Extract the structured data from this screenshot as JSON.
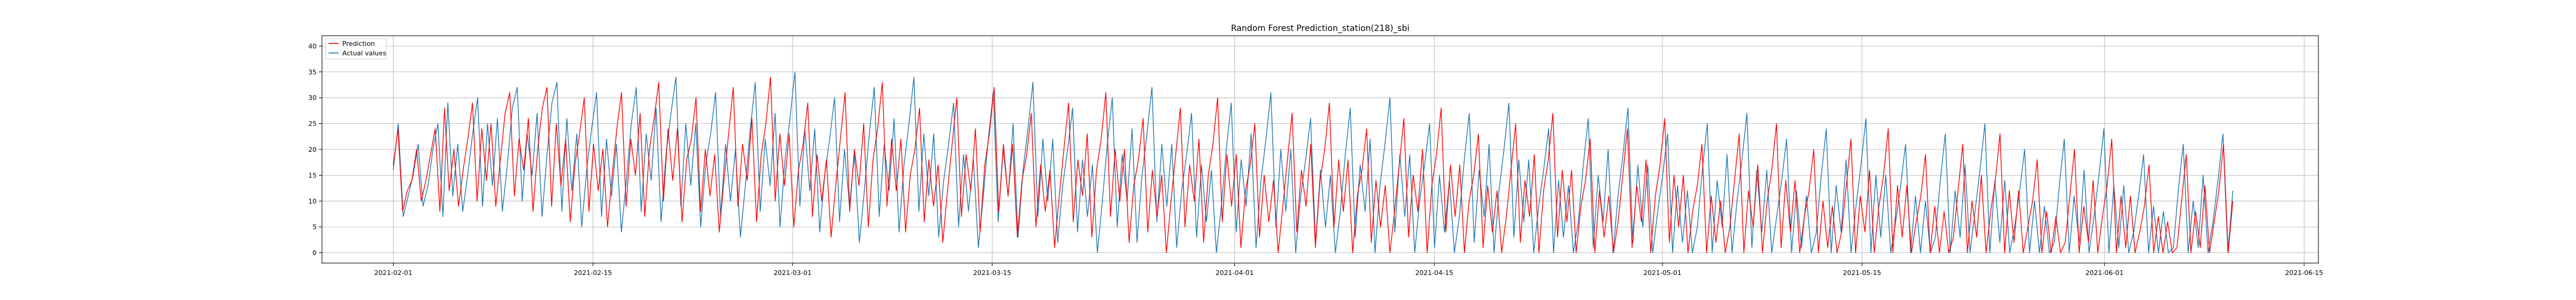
{
  "chart_data": {
    "type": "line",
    "title": "Random Forest Prediction_station(218)_sbi",
    "xlabel": "",
    "ylabel": "",
    "x_axis_type": "date",
    "x_start": "2021-02-01",
    "x_end": "2021-06-10",
    "xlim": [
      "2021-01-27",
      "2021-06-16"
    ],
    "ylim": [
      -2,
      42
    ],
    "x_ticks": [
      "2021-02-01",
      "2021-02-15",
      "2021-03-01",
      "2021-03-15",
      "2021-04-01",
      "2021-04-15",
      "2021-05-01",
      "2021-05-15",
      "2021-06-01",
      "2021-06-15"
    ],
    "y_ticks": [
      0,
      5,
      10,
      15,
      20,
      25,
      30,
      35,
      40
    ],
    "grid": true,
    "legend_position": "top-left",
    "series": [
      {
        "name": "Prediction",
        "color": "#ff0000",
        "samples_per_day": 4,
        "values": [
          17,
          24,
          8,
          12,
          14,
          20,
          10,
          14,
          19,
          24,
          8,
          28,
          12,
          20,
          9,
          16,
          22,
          29,
          10,
          24,
          14,
          25,
          9,
          18,
          27,
          31,
          11,
          22,
          16,
          26,
          8,
          20,
          28,
          32,
          9,
          25,
          13,
          22,
          6,
          17,
          23,
          30,
          8,
          21,
          12,
          20,
          5,
          15,
          24,
          31,
          9,
          22,
          15,
          27,
          7,
          20,
          26,
          33,
          10,
          24,
          14,
          24,
          6,
          18,
          22,
          30,
          8,
          20,
          11,
          19,
          4,
          14,
          23,
          32,
          9,
          21,
          14,
          26,
          6,
          19,
          25,
          34,
          10,
          23,
          13,
          23,
          5,
          16,
          21,
          29,
          7,
          19,
          10,
          18,
          3,
          13,
          22,
          31,
          8,
          20,
          13,
          25,
          5,
          18,
          24,
          33,
          9,
          22,
          12,
          22,
          4,
          15,
          20,
          28,
          6,
          18,
          9,
          17,
          2,
          12,
          21,
          30,
          7,
          19,
          12,
          24,
          4,
          17,
          23,
          32,
          8,
          21,
          11,
          21,
          3,
          14,
          19,
          27,
          5,
          17,
          8,
          16,
          1,
          11,
          20,
          29,
          6,
          18,
          11,
          23,
          3,
          16,
          22,
          31,
          7,
          20,
          10,
          20,
          2,
          13,
          18,
          26,
          4,
          16,
          7,
          15,
          0,
          10,
          19,
          28,
          5,
          17,
          10,
          22,
          2,
          15,
          21,
          30,
          6,
          19,
          9,
          19,
          1,
          12,
          17,
          25,
          3,
          15,
          6,
          14,
          0,
          9,
          18,
          27,
          4,
          16,
          9,
          21,
          1,
          14,
          20,
          29,
          5,
          18,
          8,
          18,
          0,
          11,
          16,
          24,
          2,
          14,
          5,
          13,
          0,
          8,
          17,
          26,
          3,
          15,
          8,
          20,
          0,
          13,
          19,
          28,
          4,
          17,
          7,
          17,
          0,
          10,
          15,
          23,
          1,
          13,
          4,
          12,
          0,
          7,
          16,
          25,
          2,
          14,
          7,
          19,
          0,
          12,
          18,
          27,
          3,
          16,
          6,
          16,
          0,
          9,
          14,
          22,
          0,
          12,
          3,
          11,
          0,
          6,
          15,
          24,
          1,
          13,
          6,
          18,
          0,
          11,
          17,
          26,
          2,
          15,
          5,
          15,
          0,
          8,
          13,
          21,
          0,
          11,
          2,
          10,
          0,
          5,
          14,
          23,
          0,
          12,
          5,
          17,
          0,
          10,
          16,
          25,
          1,
          14,
          4,
          14,
          0,
          7,
          12,
          20,
          0,
          10,
          1,
          9,
          0,
          4,
          13,
          22,
          0,
          11,
          4,
          16,
          0,
          9,
          15,
          24,
          0,
          13,
          3,
          13,
          0,
          6,
          11,
          19,
          0,
          9,
          0,
          8,
          0,
          3,
          12,
          21,
          0,
          10,
          3,
          15,
          0,
          8,
          14,
          23,
          0,
          12,
          2,
          12,
          0,
          5,
          10,
          18,
          0,
          8,
          0,
          7,
          0,
          2,
          11,
          20,
          0,
          9,
          2,
          14,
          0,
          7,
          13,
          22,
          0,
          11,
          1,
          11,
          0,
          4,
          9,
          17,
          0,
          7,
          0,
          6,
          0,
          1,
          10,
          19,
          0,
          8,
          1,
          13,
          0,
          6,
          12,
          21,
          0,
          10
        ]
      },
      {
        "name": "Actual values",
        "color": "#1f77b4",
        "samples_per_day": 4,
        "values": [
          16,
          25,
          7,
          11,
          15,
          21,
          9,
          13,
          20,
          25,
          7,
          29,
          11,
          21,
          8,
          15,
          23,
          30,
          9,
          25,
          13,
          26,
          8,
          17,
          28,
          32,
          10,
          23,
          15,
          27,
          7,
          19,
          29,
          33,
          8,
          26,
          12,
          23,
          5,
          16,
          24,
          31,
          7,
          22,
          11,
          21,
          4,
          14,
          25,
          32,
          8,
          23,
          14,
          28,
          6,
          19,
          27,
          34,
          9,
          25,
          13,
          25,
          5,
          17,
          23,
          31,
          7,
          21,
          10,
          20,
          3,
          13,
          24,
          33,
          8,
          22,
          13,
          27,
          5,
          18,
          26,
          35,
          9,
          24,
          12,
          24,
          4,
          15,
          22,
          30,
          6,
          20,
          9,
          19,
          2,
          12,
          23,
          32,
          7,
          21,
          12,
          26,
          4,
          17,
          25,
          34,
          8,
          23,
          11,
          23,
          3,
          14,
          21,
          29,
          5,
          19,
          8,
          18,
          1,
          11,
          22,
          31,
          6,
          20,
          11,
          25,
          3,
          16,
          24,
          33,
          7,
          22,
          10,
          22,
          2,
          13,
          20,
          28,
          4,
          18,
          7,
          17,
          0,
          10,
          21,
          30,
          5,
          19,
          10,
          24,
          2,
          15,
          23,
          32,
          6,
          21,
          9,
          21,
          1,
          12,
          19,
          27,
          3,
          17,
          6,
          16,
          0,
          9,
          20,
          29,
          4,
          18,
          9,
          23,
          1,
          14,
          22,
          31,
          5,
          20,
          8,
          20,
          0,
          11,
          18,
          26,
          2,
          16,
          5,
          15,
          0,
          8,
          19,
          28,
          3,
          17,
          8,
          22,
          0,
          13,
          21,
          30,
          4,
          19,
          7,
          19,
          0,
          10,
          17,
          25,
          1,
          15,
          4,
          14,
          0,
          7,
          18,
          27,
          2,
          16,
          7,
          21,
          0,
          12,
          20,
          29,
          3,
          18,
          6,
          18,
          0,
          9,
          16,
          24,
          0,
          14,
          3,
          13,
          0,
          6,
          17,
          26,
          1,
          15,
          6,
          20,
          0,
          11,
          19,
          28,
          2,
          17,
          5,
          17,
          0,
          8,
          15,
          23,
          0,
          13,
          2,
          12,
          0,
          5,
          16,
          25,
          0,
          14,
          5,
          19,
          0,
          10,
          18,
          27,
          1,
          16,
          4,
          16,
          0,
          7,
          14,
          22,
          0,
          12,
          1,
          11,
          0,
          4,
          15,
          24,
          0,
          13,
          4,
          18,
          0,
          9,
          17,
          26,
          0,
          15,
          3,
          15,
          0,
          6,
          13,
          21,
          0,
          11,
          0,
          10,
          0,
          3,
          14,
          23,
          0,
          12,
          3,
          17,
          0,
          8,
          16,
          25,
          0,
          14,
          2,
          14,
          0,
          5,
          12,
          20,
          0,
          10,
          0,
          9,
          0,
          2,
          13,
          22,
          0,
          11,
          2,
          16,
          0,
          7,
          15,
          24,
          0,
          13,
          1,
          13,
          0,
          4,
          11,
          19,
          0,
          9,
          0,
          8,
          0,
          1,
          12,
          21,
          0,
          10,
          1,
          15,
          0,
          6,
          14,
          23,
          0,
          12
        ]
      }
    ]
  },
  "style": {
    "prediction_color": "#ff0000",
    "actual_color": "#1f77b4",
    "grid_color": "#b0b0b0",
    "axes_color": "#000000"
  }
}
